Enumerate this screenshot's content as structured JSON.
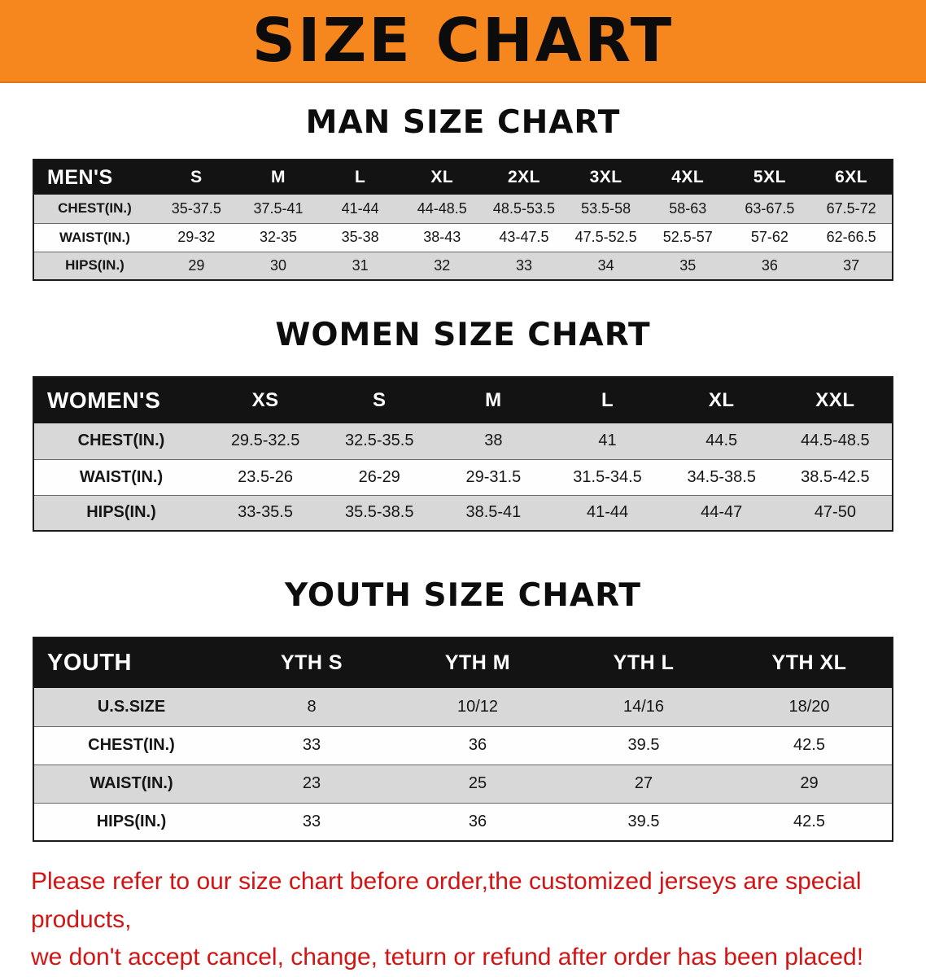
{
  "banner": {
    "title": "SIZE CHART"
  },
  "colors": {
    "banner_bg": "#f6871f",
    "table_header_bg": "#131313",
    "row_alt_gray": "#d8d8d8",
    "note_red": "#d31414"
  },
  "sections": {
    "men": {
      "heading": "MAN SIZE CHART",
      "table": {
        "columns": [
          "MEN'S",
          "S",
          "M",
          "L",
          "XL",
          "2XL",
          "3XL",
          "4XL",
          "5XL",
          "6XL"
        ],
        "rows": [
          [
            "CHEST(IN.)",
            "35-37.5",
            "37.5-41",
            "41-44",
            "44-48.5",
            "48.5-53.5",
            "53.5-58",
            "58-63",
            "63-67.5",
            "67.5-72"
          ],
          [
            "WAIST(IN.)",
            "29-32",
            "32-35",
            "35-38",
            "38-43",
            "43-47.5",
            "47.5-52.5",
            "52.5-57",
            "57-62",
            "62-66.5"
          ],
          [
            "HIPS(IN.)",
            "29",
            "30",
            "31",
            "32",
            "33",
            "34",
            "35",
            "36",
            "37"
          ]
        ]
      }
    },
    "women": {
      "heading": "WOMEN SIZE CHART",
      "table": {
        "columns": [
          "WOMEN'S",
          "XS",
          "S",
          "M",
          "L",
          "XL",
          "XXL"
        ],
        "rows": [
          [
            "CHEST(IN.)",
            "29.5-32.5",
            "32.5-35.5",
            "38",
            "41",
            "44.5",
            "44.5-48.5"
          ],
          [
            "WAIST(IN.)",
            "23.5-26",
            "26-29",
            "29-31.5",
            "31.5-34.5",
            "34.5-38.5",
            "38.5-42.5"
          ],
          [
            "HIPS(IN.)",
            "33-35.5",
            "35.5-38.5",
            "38.5-41",
            "41-44",
            "44-47",
            "47-50"
          ]
        ]
      }
    },
    "youth": {
      "heading": "YOUTH SIZE CHART",
      "table": {
        "columns": [
          "YOUTH",
          "YTH S",
          "YTH M",
          "YTH L",
          "YTH XL"
        ],
        "rows": [
          [
            "U.S.SIZE",
            "8",
            "10/12",
            "14/16",
            "18/20"
          ],
          [
            "CHEST(IN.)",
            "33",
            "36",
            "39.5",
            "42.5"
          ],
          [
            "WAIST(IN.)",
            "23",
            "25",
            "27",
            "29"
          ],
          [
            "HIPS(IN.)",
            "33",
            "36",
            "39.5",
            "42.5"
          ]
        ]
      }
    }
  },
  "note": {
    "line1": "Please refer to our size chart before order,the customized jerseys are special products,",
    "line2": "we don't accept cancel, change, teturn or refund after order has been placed!"
  }
}
